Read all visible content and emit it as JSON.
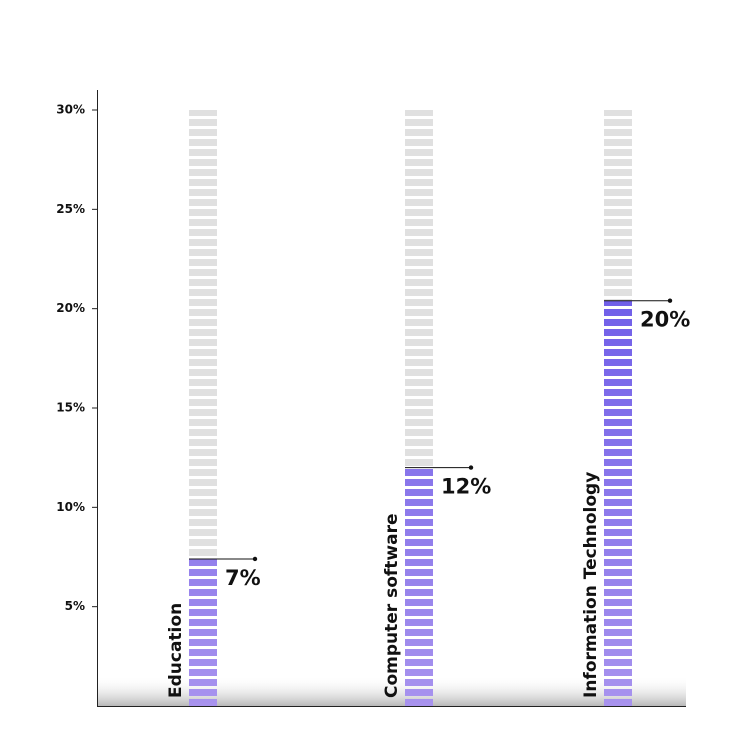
{
  "chart_data": {
    "type": "bar",
    "categories": [
      "Education",
      "Computer software",
      "Information Technology"
    ],
    "values": [
      7.4,
      12,
      20.4
    ],
    "value_labels": [
      "7%",
      "12%",
      "20%"
    ],
    "colors": [
      "#a893ee",
      "#5444e6"
    ],
    "track_color": "#e0e0e0",
    "ylim": [
      0,
      31
    ],
    "yticks": [
      {
        "value": 5,
        "label": "5%"
      },
      {
        "value": 10,
        "label": "10%"
      },
      {
        "value": 15,
        "label": "15%"
      },
      {
        "value": 20,
        "label": "20%"
      },
      {
        "value": 25,
        "label": "25%"
      },
      {
        "value": 30,
        "label": "30%"
      }
    ],
    "grid": false
  }
}
